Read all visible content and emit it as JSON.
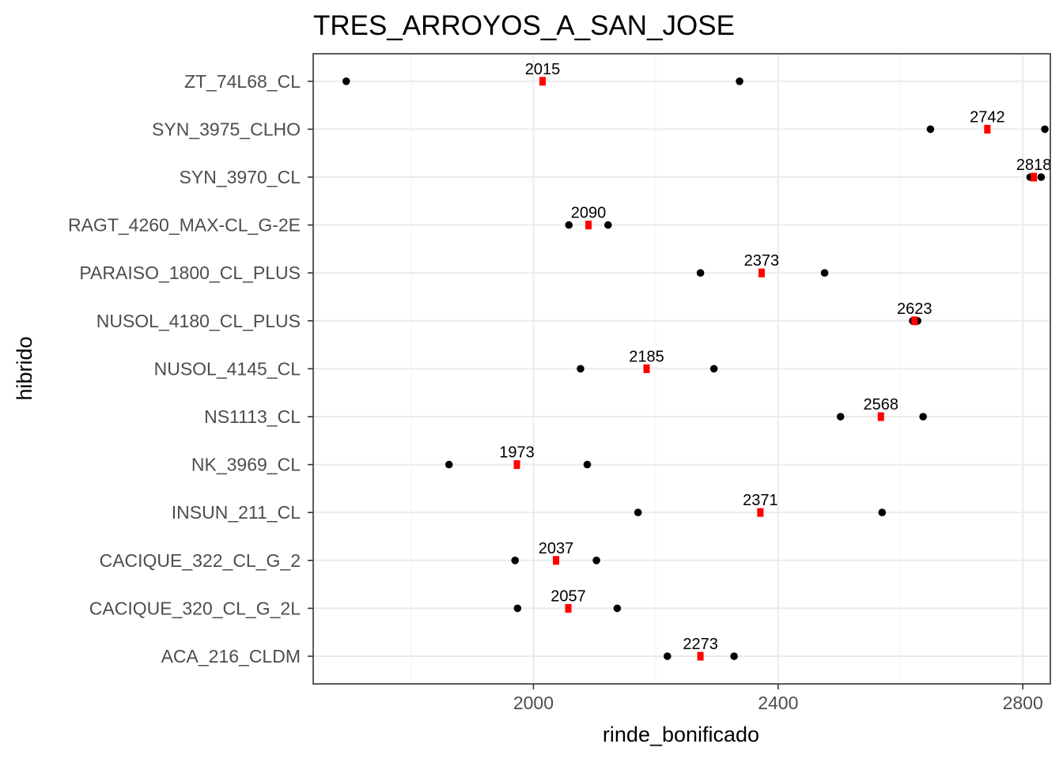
{
  "chart_data": {
    "type": "scatter",
    "title": "TRES_ARROYOS_A_SAN_JOSE",
    "xlabel": "rinde_bonificado",
    "ylabel": "hibrido",
    "xlim": [
      1640,
      2845
    ],
    "x_ticks": [
      2000,
      2400,
      2800
    ],
    "x_tick_labels": [
      "2000",
      "2400",
      "2800"
    ],
    "grid": true,
    "legend": "none",
    "colors": {
      "points": "#000000",
      "mean": "#ff0000",
      "grid": "#ebebeb",
      "border": "#333333"
    },
    "categories": [
      "ACA_216_CLDM",
      "CACIQUE_320_CL_G_2L",
      "CACIQUE_322_CL_G_2",
      "INSUN_211_CL",
      "NK_3969_CL",
      "NS1113_CL",
      "NUSOL_4145_CL",
      "NUSOL_4180_CL_PLUS",
      "PARAISO_1800_CL_PLUS",
      "RAGT_4260_MAX-CL_G-2E",
      "SYN_3970_CL",
      "SYN_3975_CLHO",
      "ZT_74L68_CL"
    ],
    "series": [
      {
        "kind": "observations",
        "points": [
          [
            [
              2219,
              2328
            ]
          ],
          [
            [
              1974,
              2137
            ]
          ],
          [
            [
              1970,
              2103
            ]
          ],
          [
            [
              2171,
              2570
            ]
          ],
          [
            [
              1862,
              2088
            ]
          ],
          [
            [
              2502,
              2637
            ]
          ],
          [
            [
              2077,
              2295
            ]
          ],
          [
            [
              2620,
              2628
            ]
          ],
          [
            [
              2273,
              2476
            ]
          ],
          [
            [
              2058,
              2122
            ]
          ],
          [
            [
              2812,
              2830
            ]
          ],
          [
            [
              2649,
              2836
            ]
          ],
          [
            [
              1694,
              2337
            ]
          ]
        ]
      },
      {
        "kind": "mean",
        "values": [
          2273,
          2057,
          2037,
          2371,
          1973,
          2568,
          2185,
          2623,
          2373,
          2090,
          2818,
          2742,
          2015
        ],
        "labels": [
          "2273",
          "2057",
          "2037",
          "2371",
          "1973",
          "2568",
          "2185",
          "2623",
          "2373",
          "2090",
          "2818",
          "2742",
          "2015"
        ]
      }
    ]
  }
}
